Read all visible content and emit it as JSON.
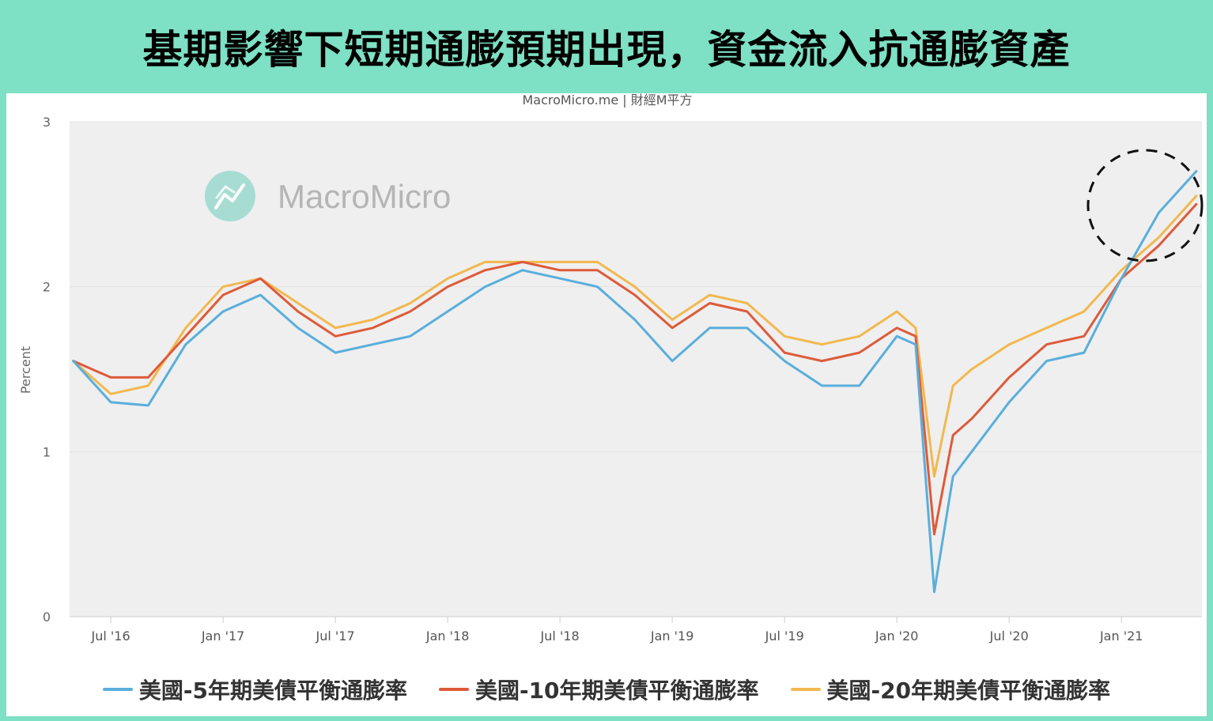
{
  "banner": {
    "title": "基期影響下短期通膨預期出現，資金流入抗通膨資產"
  },
  "chart": {
    "credit": "MacroMicro.me | 財經M平方",
    "watermark": "MacroMicro"
  },
  "colors": {
    "background_border": "#7ee0c4",
    "plot_bg": "#efefef",
    "series_5y": "#5aaedb",
    "series_10y": "#dd5b3a",
    "series_20y": "#f2b84f",
    "watermark": "#9fd8cf"
  },
  "icons": {
    "watermark_logo": "chart-line-circle-icon",
    "highlight": "dashed-circle-annotation"
  },
  "chart_data": {
    "type": "line",
    "title": "",
    "xlabel": "",
    "ylabel": "Percent",
    "ylim": [
      0,
      3
    ],
    "yticks": [
      "0",
      "1",
      "2",
      "3"
    ],
    "xticks": [
      "Jul '16",
      "Jan '17",
      "Jul '17",
      "Jan '18",
      "Jul '18",
      "Jan '19",
      "Jul '19",
      "Jan '20",
      "Jul '20",
      "Jan '21"
    ],
    "x": [
      "2016-05",
      "2016-07",
      "2016-09",
      "2016-11",
      "2017-01",
      "2017-03",
      "2017-05",
      "2017-07",
      "2017-09",
      "2017-11",
      "2018-01",
      "2018-03",
      "2018-05",
      "2018-07",
      "2018-09",
      "2018-11",
      "2019-01",
      "2019-03",
      "2019-05",
      "2019-07",
      "2019-09",
      "2019-11",
      "2020-01",
      "2020-02",
      "2020-03",
      "2020-04",
      "2020-05",
      "2020-07",
      "2020-09",
      "2020-11",
      "2021-01",
      "2021-03",
      "2021-05"
    ],
    "series": [
      {
        "name": "美國-5年期美債平衡通膨率",
        "values": [
          1.55,
          1.3,
          1.28,
          1.65,
          1.85,
          1.95,
          1.75,
          1.6,
          1.65,
          1.7,
          1.85,
          2.0,
          2.1,
          2.05,
          2.0,
          1.8,
          1.55,
          1.75,
          1.75,
          1.55,
          1.4,
          1.4,
          1.7,
          1.65,
          0.15,
          0.85,
          1.0,
          1.3,
          1.55,
          1.6,
          2.05,
          2.45,
          2.7
        ]
      },
      {
        "name": "美國-10年期美債平衡通膨率",
        "values": [
          1.55,
          1.45,
          1.45,
          1.7,
          1.95,
          2.05,
          1.85,
          1.7,
          1.75,
          1.85,
          2.0,
          2.1,
          2.15,
          2.1,
          2.1,
          1.95,
          1.75,
          1.9,
          1.85,
          1.6,
          1.55,
          1.6,
          1.75,
          1.7,
          0.5,
          1.1,
          1.2,
          1.45,
          1.65,
          1.7,
          2.05,
          2.25,
          2.5
        ]
      },
      {
        "name": "美國-20年期美債平衡通膨率",
        "values": [
          1.55,
          1.35,
          1.4,
          1.75,
          2.0,
          2.05,
          1.9,
          1.75,
          1.8,
          1.9,
          2.05,
          2.15,
          2.15,
          2.15,
          2.15,
          2.0,
          1.8,
          1.95,
          1.9,
          1.7,
          1.65,
          1.7,
          1.85,
          1.75,
          0.85,
          1.4,
          1.5,
          1.65,
          1.75,
          1.85,
          2.1,
          2.3,
          2.55
        ]
      }
    ],
    "legend_position": "bottom",
    "grid": true
  }
}
